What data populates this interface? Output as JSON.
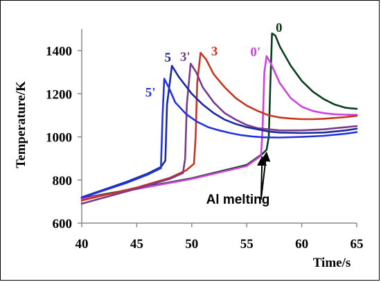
{
  "chart_data": {
    "type": "line",
    "title": "",
    "xlabel": "Time/s",
    "ylabel": "Temperature/K",
    "xlim": [
      40,
      65
    ],
    "ylim": [
      600,
      1500
    ],
    "xticks": [
      40,
      45,
      50,
      55,
      60,
      65
    ],
    "yticks": [
      600,
      800,
      1000,
      1200,
      1400
    ],
    "grid": false,
    "legend": "none",
    "series": [
      {
        "name": "0",
        "color": "#0b3d1a",
        "x": [
          40,
          45,
          50,
          55,
          56.4,
          56.8,
          57.0,
          57.15,
          57.3,
          57.6,
          58,
          59,
          60,
          61,
          62,
          63,
          64,
          65
        ],
        "y": [
          715,
          761,
          808,
          870,
          920,
          940,
          1000,
          1250,
          1480,
          1470,
          1420,
          1330,
          1260,
          1210,
          1175,
          1150,
          1135,
          1130
        ]
      },
      {
        "name": "0'",
        "color": "#cc44dd",
        "x": [
          40,
          45,
          50,
          55,
          56.3,
          56.45,
          56.6,
          56.8,
          57.2,
          58,
          59,
          60,
          61,
          62,
          63,
          64,
          65
        ],
        "y": [
          712,
          758,
          805,
          865,
          912,
          1050,
          1300,
          1375,
          1340,
          1250,
          1180,
          1140,
          1120,
          1110,
          1105,
          1103,
          1102
        ]
      },
      {
        "name": "3",
        "color": "#c8341e",
        "x": [
          40,
          45,
          48,
          49.5,
          50.2,
          50.35,
          50.5,
          50.8,
          51.3,
          52,
          53,
          54,
          55,
          56,
          57,
          58,
          59,
          60,
          61,
          62,
          63,
          64,
          65
        ],
        "y": [
          705,
          765,
          810,
          845,
          875,
          1000,
          1250,
          1390,
          1360,
          1290,
          1230,
          1180,
          1145,
          1120,
          1100,
          1090,
          1085,
          1082,
          1082,
          1084,
          1088,
          1092,
          1098
        ]
      },
      {
        "name": "3'",
        "color": "#7a3a8c",
        "x": [
          40,
          45,
          48,
          49.2,
          49.4,
          49.55,
          49.9,
          50.4,
          51,
          52,
          53,
          54,
          55,
          56,
          58,
          60,
          62,
          63,
          64,
          65
        ],
        "y": [
          690,
          760,
          805,
          832,
          900,
          1150,
          1340,
          1300,
          1230,
          1160,
          1110,
          1080,
          1055,
          1040,
          1030,
          1030,
          1035,
          1040,
          1045,
          1050
        ]
      },
      {
        "name": "5",
        "color": "#1a2a9a",
        "x": [
          40,
          44,
          46,
          47.2,
          47.6,
          47.75,
          48.2,
          48.8,
          50,
          51,
          52,
          53,
          54,
          55,
          56,
          57,
          58,
          60,
          62,
          64,
          65
        ],
        "y": [
          720,
          790,
          830,
          860,
          890,
          1150,
          1330,
          1280,
          1200,
          1150,
          1110,
          1080,
          1060,
          1045,
          1035,
          1025,
          1020,
          1018,
          1020,
          1030,
          1038
        ]
      },
      {
        "name": "5'",
        "color": "#2233dd",
        "x": [
          40,
          44,
          46,
          47.2,
          47.35,
          47.5,
          47.9,
          48.5,
          49.5,
          50.5,
          51.5,
          52.5,
          53.5,
          54.5,
          55.5,
          56.5,
          58,
          60,
          62,
          64,
          65
        ],
        "y": [
          718,
          785,
          825,
          855,
          1100,
          1270,
          1230,
          1160,
          1105,
          1070,
          1045,
          1030,
          1018,
          1008,
          1002,
          998,
          997,
          1000,
          1005,
          1015,
          1022
        ]
      }
    ],
    "annotations": [
      {
        "text": "Al melting",
        "arrow_targets": [
          [
            56.4,
            920
          ],
          [
            56.8,
            940
          ]
        ]
      }
    ]
  }
}
